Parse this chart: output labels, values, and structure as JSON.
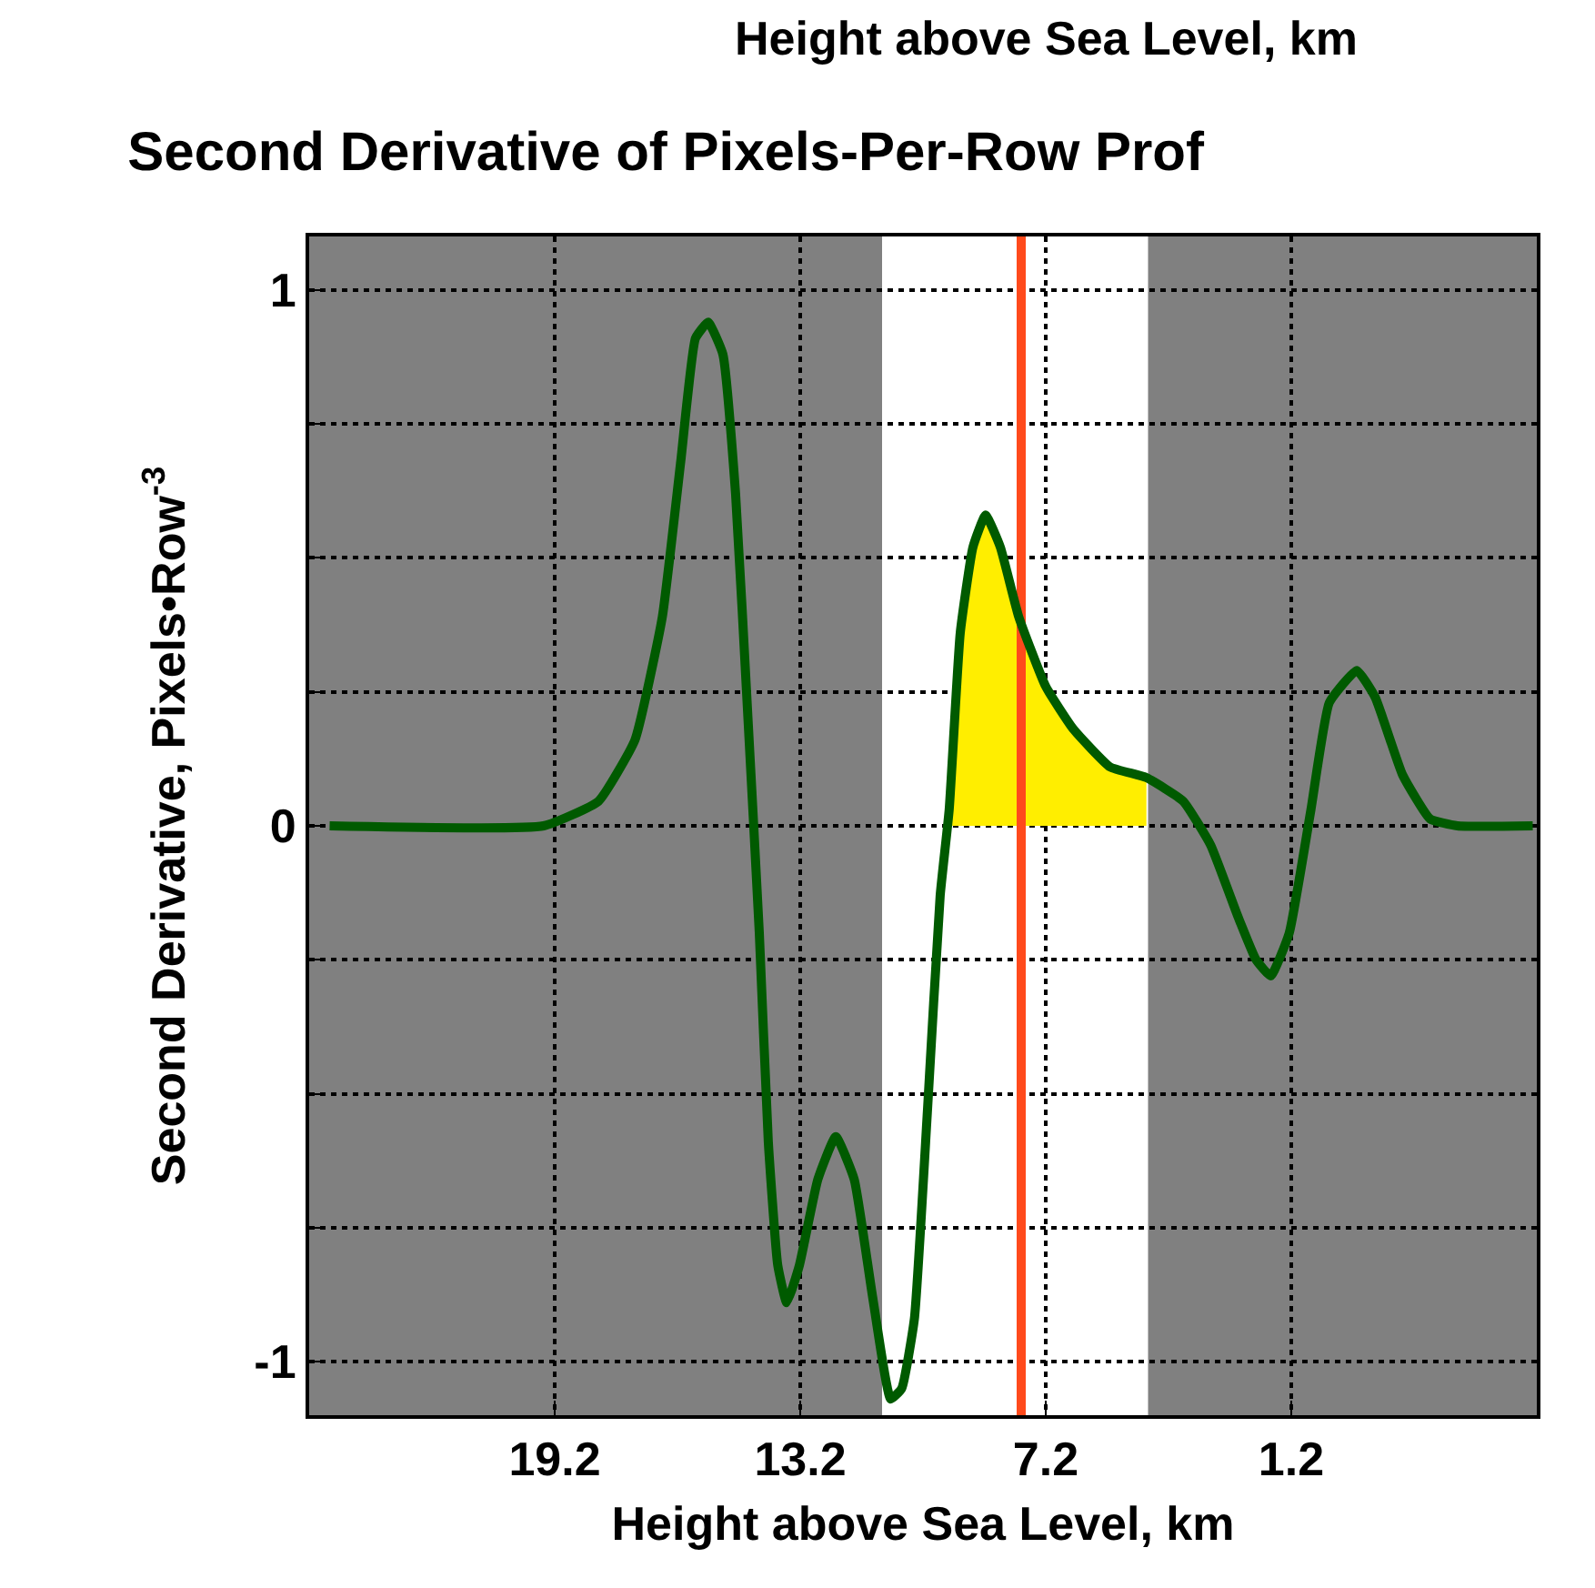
{
  "chart_data": {
    "type": "line",
    "title": "Second Derivative of Pixels-Per-Row Prof",
    "xlabel": "Height above Sea Level, km",
    "ylabel": "Second Derivative, Pixels•Row$^{-3}$",
    "annotations": [
      "Height above Sea Level, km"
    ],
    "xlim": [
      25.2,
      -4.8
    ],
    "xticks": [
      19.2,
      13.2,
      7.2,
      1.2
    ],
    "ylim": [
      -1.1,
      1.1
    ],
    "yticks": [
      -1,
      {
        "value": -0.75,
        "label": null
      },
      {
        "value": -0.5,
        "label": null
      },
      {
        "value": -0.25,
        "label": null
      },
      0,
      {
        "value": 0.25,
        "label": null
      },
      {
        "value": 0.5,
        "label": null
      },
      {
        "value": 0.75,
        "label": null
      },
      1
    ],
    "grid": true,
    "line_style": "solid",
    "bands": [
      {
        "axis": "x",
        "from": 11.2,
        "to": 4.7,
        "color": "#ffffff"
      }
    ],
    "ref_lines": [
      {
        "axis": "x",
        "value": 7.8,
        "color": "#ff4a1c"
      }
    ],
    "series": [
      {
        "type": "area",
        "color": "#ffee00",
        "x": [
          9.6,
          9.29,
          8.98,
          8.67,
          8.31,
          7.86,
          7.2,
          6.52,
          5.63,
          4.74
        ],
        "values": [
          0,
          0.36,
          0.52,
          0.58,
          0.52,
          0.39,
          0.26,
          0.18,
          0.11,
          0.09
        ]
      },
      {
        "color": "#005a00",
        "x": [
          24.7,
          19.47,
          18.13,
          17.24,
          16.57,
          16.12,
          15.76,
          15.45,
          15.09,
          14.78,
          14.47,
          14.2,
          13.98,
          13.75,
          13.53,
          13.22,
          12.77,
          12.33,
          11.88,
          11.43,
          10.99,
          10.72,
          10.41,
          10.09,
          9.78,
          9.56,
          9.29,
          8.98,
          8.67,
          8.31,
          7.86,
          7.2,
          6.52,
          5.63,
          4.74,
          3.84,
          3.17,
          2.5,
          2.06,
          1.7,
          1.25,
          0.72,
          0.27,
          -0.4,
          -0.85,
          -1.52,
          -2.19,
          -2.86,
          -4.7
        ],
        "values": [
          0,
          0,
          0.046,
          0.16,
          0.39,
          0.68,
          0.91,
          0.94,
          0.88,
          0.62,
          0.19,
          -0.2,
          -0.59,
          -0.82,
          -0.89,
          -0.82,
          -0.66,
          -0.58,
          -0.66,
          -0.88,
          -1.07,
          -1.05,
          -0.92,
          -0.53,
          -0.13,
          0.03,
          0.36,
          0.52,
          0.58,
          0.52,
          0.39,
          0.26,
          0.18,
          0.11,
          0.09,
          0.046,
          -0.036,
          -0.17,
          -0.25,
          -0.28,
          -0.2,
          0.03,
          0.23,
          0.29,
          0.24,
          0.095,
          0.013,
          0,
          0
        ]
      }
    ]
  }
}
